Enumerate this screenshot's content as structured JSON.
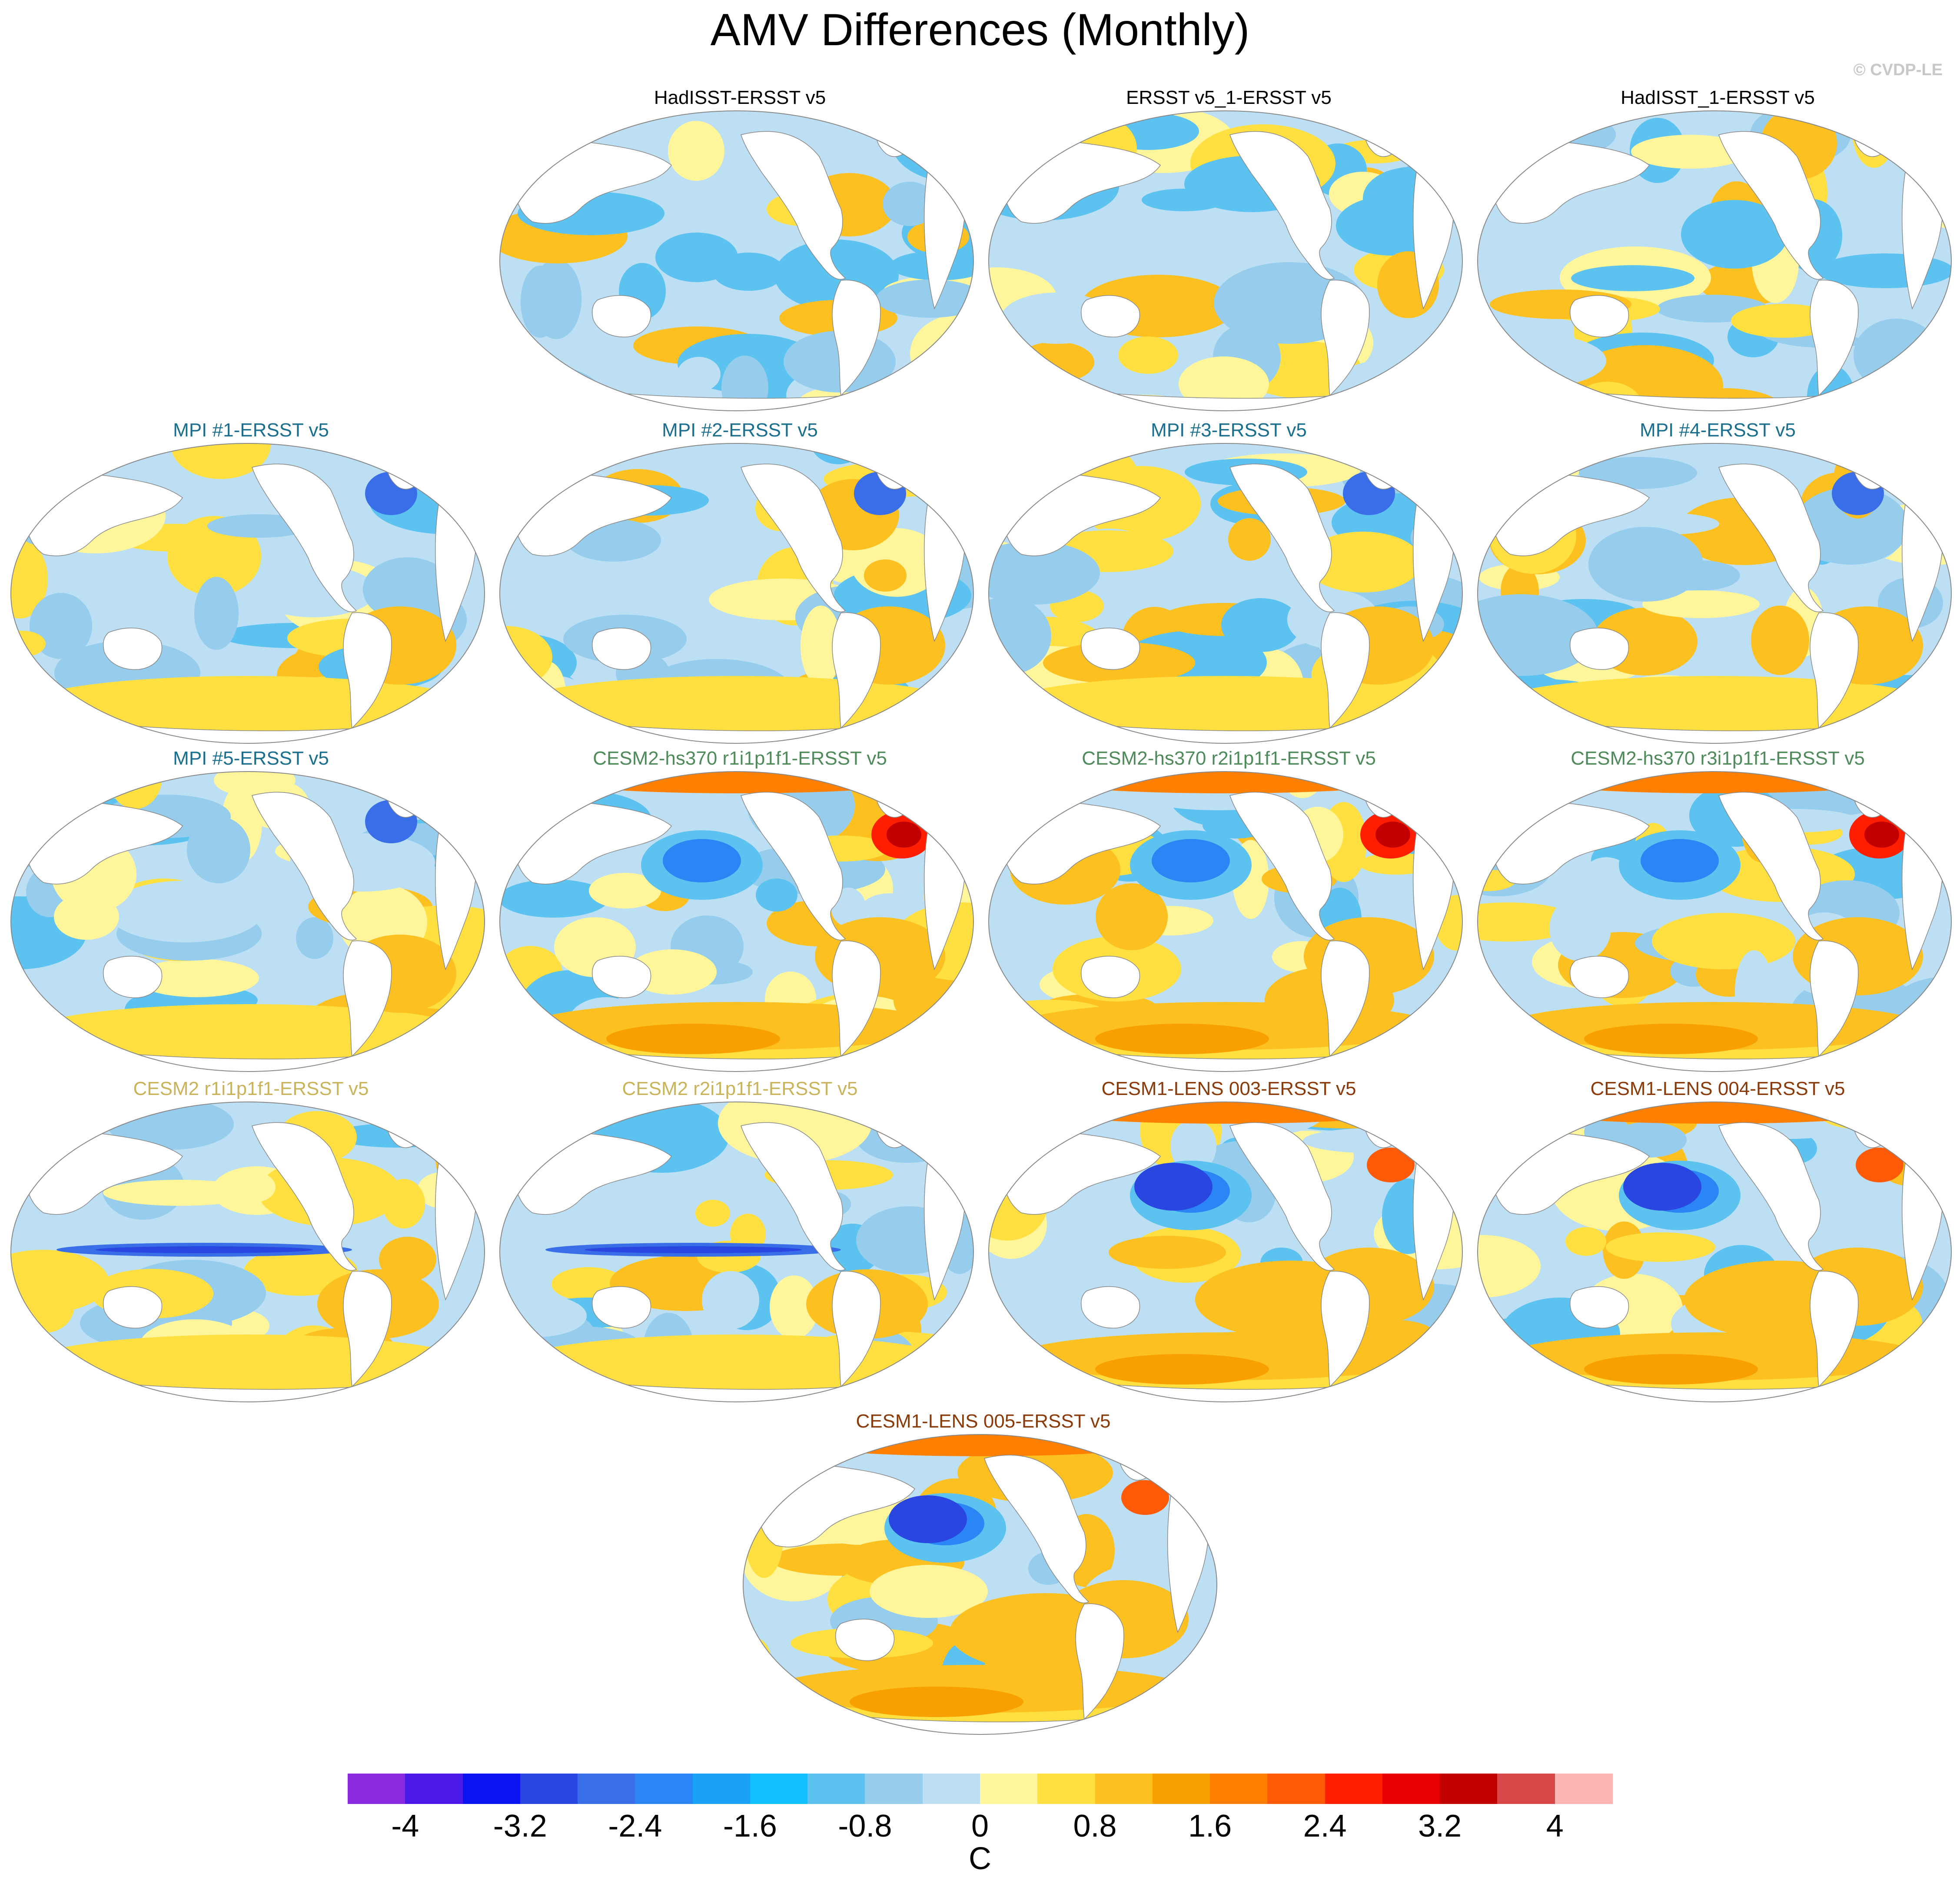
{
  "title": "AMV Differences (Monthly)",
  "credit": "© CVDP-LE",
  "panels": [
    {
      "row": 0,
      "col": 1,
      "label": "HadISST-ERSST v5",
      "title_color": "#000000",
      "pattern": "mixed-light"
    },
    {
      "row": 0,
      "col": 2,
      "label": "ERSST v5_1-ERSST v5",
      "title_color": "#000000",
      "pattern": "mixed-light"
    },
    {
      "row": 0,
      "col": 3,
      "label": "HadISST_1-ERSST v5",
      "title_color": "#000000",
      "pattern": "mixed-light"
    },
    {
      "row": 1,
      "col": 0,
      "label": "MPI #1-ERSST v5",
      "title_color": "#1a6e8e",
      "pattern": "mixed"
    },
    {
      "row": 1,
      "col": 1,
      "label": "MPI #2-ERSST v5",
      "title_color": "#1a6e8e",
      "pattern": "mixed"
    },
    {
      "row": 1,
      "col": 2,
      "label": "MPI #3-ERSST v5",
      "title_color": "#1a6e8e",
      "pattern": "mixed"
    },
    {
      "row": 1,
      "col": 3,
      "label": "MPI #4-ERSST v5",
      "title_color": "#1a6e8e",
      "pattern": "mixed"
    },
    {
      "row": 2,
      "col": 0,
      "label": "MPI #5-ERSST v5",
      "title_color": "#1a6e8e",
      "pattern": "mixed"
    },
    {
      "row": 2,
      "col": 1,
      "label": "CESM2-hs370 r1i1p1f1-ERSST v5",
      "title_color": "#4e8a5a",
      "pattern": "warm-north-atlantic"
    },
    {
      "row": 2,
      "col": 2,
      "label": "CESM2-hs370 r2i1p1f1-ERSST v5",
      "title_color": "#4e8a5a",
      "pattern": "warm-north-atlantic"
    },
    {
      "row": 2,
      "col": 3,
      "label": "CESM2-hs370 r3i1p1f1-ERSST v5",
      "title_color": "#4e8a5a",
      "pattern": "warm-north-atlantic"
    },
    {
      "row": 3,
      "col": 0,
      "label": "CESM2 r1i1p1f1-ERSST v5",
      "title_color": "#c9b45c",
      "pattern": "cold-equator"
    },
    {
      "row": 3,
      "col": 1,
      "label": "CESM2 r2i1p1f1-ERSST v5",
      "title_color": "#c9b45c",
      "pattern": "cold-equator"
    },
    {
      "row": 3,
      "col": 2,
      "label": "CESM1-LENS 003-ERSST v5",
      "title_color": "#8b3a0a",
      "pattern": "lens"
    },
    {
      "row": 3,
      "col": 3,
      "label": "CESM1-LENS 004-ERSST v5",
      "title_color": "#8b3a0a",
      "pattern": "lens"
    },
    {
      "row": 4,
      "col": 1.5,
      "label": "CESM1-LENS 005-ERSST v5",
      "title_color": "#8b3a0a",
      "pattern": "lens"
    }
  ],
  "colorbar": {
    "colors": [
      "#8a2be2",
      "#4b1ae8",
      "#0a14f0",
      "#2a46e0",
      "#3a6ee8",
      "#2a86f4",
      "#1aa2f8",
      "#10c0ff",
      "#5cc2f0",
      "#96ccec",
      "#bcdff4",
      "#fff69c",
      "#ffe040",
      "#fcc020",
      "#f8a000",
      "#ff8000",
      "#ff5a08",
      "#ff1e00",
      "#e80000",
      "#c20000",
      "#d84848",
      "#ffb4b4"
    ],
    "tick_labels": [
      "-4",
      "-3.2",
      "-2.4",
      "-1.6",
      "-0.8",
      "0",
      "0.8",
      "1.6",
      "2.4",
      "3.2",
      "4"
    ],
    "units": "C"
  }
}
